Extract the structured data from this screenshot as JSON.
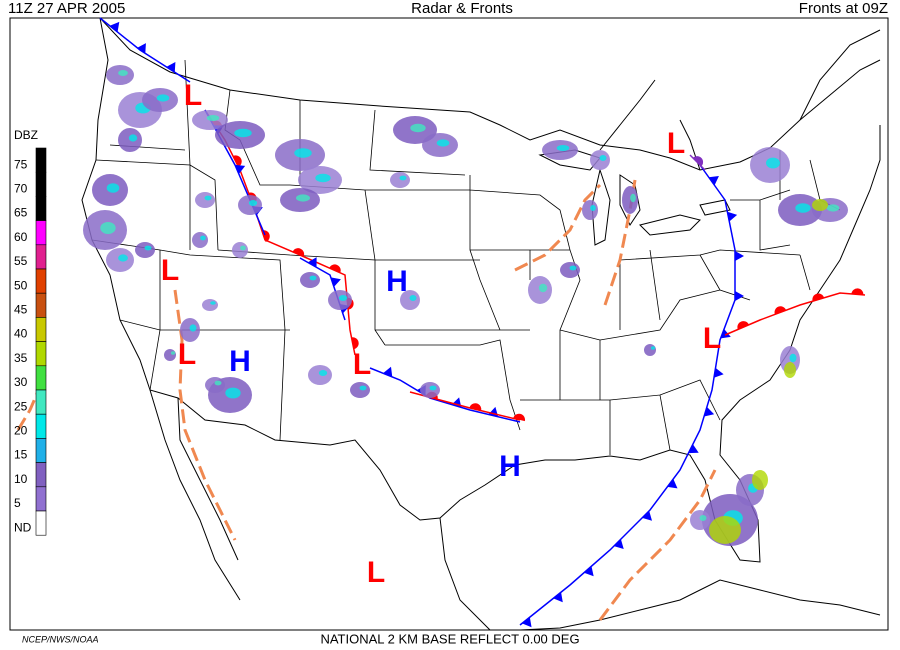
{
  "header": {
    "left": "11Z  27 APR  2005",
    "center": "Radar & Fronts",
    "right": "Fronts at 09Z"
  },
  "legend": {
    "title": "DBZ",
    "levels": [
      {
        "label": "75",
        "color": "#000000"
      },
      {
        "label": "70",
        "color": "#000000"
      },
      {
        "label": "65",
        "color": "#000000"
      },
      {
        "label": "60",
        "color": "#ff00ff"
      },
      {
        "label": "55",
        "color": "#e0208f"
      },
      {
        "label": "50",
        "color": "#e04000"
      },
      {
        "label": "45",
        "color": "#c85010"
      },
      {
        "label": "40",
        "color": "#c8c800"
      },
      {
        "label": "35",
        "color": "#b0d800"
      },
      {
        "label": "30",
        "color": "#40e040"
      },
      {
        "label": "25",
        "color": "#40e8c0"
      },
      {
        "label": "20",
        "color": "#00e8e8"
      },
      {
        "label": "15",
        "color": "#20b0e8"
      },
      {
        "label": "10",
        "color": "#8060c0"
      },
      {
        "label": "5",
        "color": "#9070d0"
      },
      {
        "label": "ND",
        "color": "#ffffff"
      }
    ]
  },
  "pressure_centers": [
    {
      "label": "L",
      "color": "#ff0000"
    },
    {
      "label": "L",
      "color": "#ff0000"
    },
    {
      "label": "L",
      "color": "#ff0000"
    },
    {
      "label": "H",
      "color": "#0000ff"
    },
    {
      "label": "L",
      "color": "#ff0000"
    },
    {
      "label": "H",
      "color": "#0000ff"
    },
    {
      "label": "L",
      "color": "#ff0000"
    },
    {
      "label": "L",
      "color": "#ff0000"
    },
    {
      "label": "H",
      "color": "#0000ff"
    },
    {
      "label": "L",
      "color": "#ff0000"
    }
  ],
  "footer": {
    "left": "NCEP/NWS/NOAA",
    "center": "NATIONAL 2 KM BASE REFLECT 0.00 DEG"
  }
}
